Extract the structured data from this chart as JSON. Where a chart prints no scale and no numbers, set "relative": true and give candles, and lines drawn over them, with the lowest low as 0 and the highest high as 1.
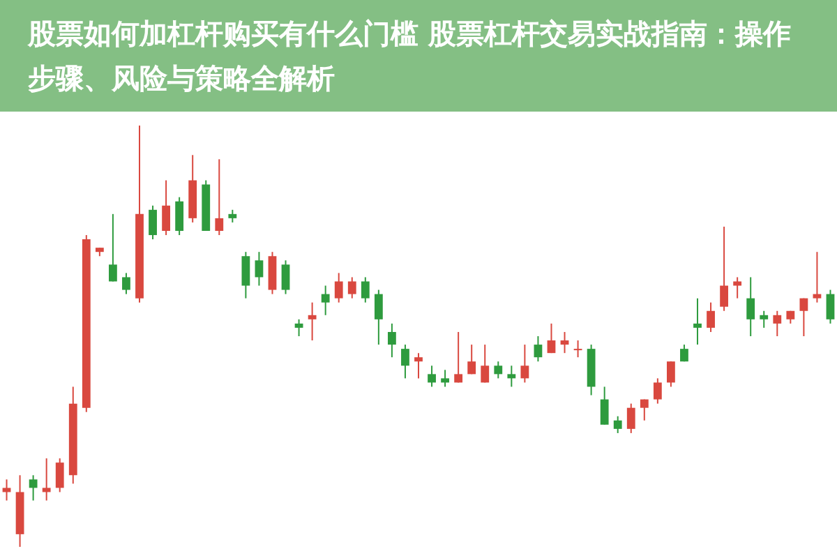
{
  "chart_data": {
    "type": "candlestick",
    "title": "股票如何加杠杆购买有什么门槛 股票杠杆交易实战指南：操作步骤、风险与策略全解析",
    "relative": true,
    "categories": [
      null,
      null,
      null,
      null,
      null,
      null,
      null,
      null,
      null,
      null,
      null,
      null,
      null,
      null,
      null,
      null,
      null,
      null,
      null,
      null,
      null,
      null,
      null,
      null,
      null,
      null,
      null,
      null,
      null,
      null,
      null,
      null,
      null,
      null,
      null,
      null,
      null,
      null,
      null,
      null,
      null,
      null,
      null,
      null,
      null,
      null,
      null,
      null,
      null,
      null,
      null,
      null,
      null,
      null,
      null,
      null,
      null,
      null,
      null,
      null,
      null,
      null,
      null
    ],
    "ohlc": [
      [
        0.13,
        0.16,
        0.11,
        0.14
      ],
      [
        0.03,
        0.17,
        0,
        0.13
      ],
      [
        0.16,
        0.17,
        0.11,
        0.14
      ],
      [
        0.13,
        0.21,
        0.11,
        0.14
      ],
      [
        0.14,
        0.21,
        0.13,
        0.2
      ],
      [
        0.17,
        0.38,
        0.15,
        0.34
      ],
      [
        0.33,
        0.74,
        0.32,
        0.73
      ],
      [
        0.7,
        0.71,
        0.69,
        0.71
      ],
      [
        0.67,
        0.79,
        0.63,
        0.63
      ],
      [
        0.64,
        0.65,
        0.6,
        0.61
      ],
      [
        0.59,
        1,
        0.58,
        0.79
      ],
      [
        0.8,
        0.81,
        0.73,
        0.74
      ],
      [
        0.75,
        0.87,
        0.74,
        0.81
      ],
      [
        0.82,
        0.83,
        0.74,
        0.75
      ],
      [
        0.78,
        0.93,
        0.77,
        0.87
      ],
      [
        0.86,
        0.87,
        0.75,
        0.75
      ],
      [
        0.75,
        0.92,
        0.74,
        0.78
      ],
      [
        0.79,
        0.8,
        0.77,
        0.78
      ],
      [
        0.69,
        0.7,
        0.59,
        0.62
      ],
      [
        0.68,
        0.7,
        0.62,
        0.64
      ],
      [
        0.61,
        0.7,
        0.6,
        0.69
      ],
      [
        0.67,
        0.68,
        0.6,
        0.61
      ],
      [
        0.53,
        0.54,
        0.5,
        0.52
      ],
      [
        0.54,
        0.58,
        0.49,
        0.55
      ],
      [
        0.6,
        0.62,
        0.55,
        0.58
      ],
      [
        0.59,
        0.65,
        0.58,
        0.63
      ],
      [
        0.6,
        0.64,
        0.59,
        0.63
      ],
      [
        0.63,
        0.64,
        0.58,
        0.59
      ],
      [
        0.6,
        0.61,
        0.48,
        0.54
      ],
      [
        0.51,
        0.53,
        0.45,
        0.48
      ],
      [
        0.47,
        0.48,
        0.4,
        0.43
      ],
      [
        0.44,
        0.46,
        0.4,
        0.45
      ],
      [
        0.41,
        0.43,
        0.38,
        0.39
      ],
      [
        0.4,
        0.42,
        0.38,
        0.39
      ],
      [
        0.39,
        0.51,
        0.39,
        0.41
      ],
      [
        0.41,
        0.48,
        0.41,
        0.44
      ],
      [
        0.39,
        0.48,
        0.39,
        0.43
      ],
      [
        0.43,
        0.44,
        0.4,
        0.41
      ],
      [
        0.41,
        0.43,
        0.38,
        0.4
      ],
      [
        0.4,
        0.48,
        0.39,
        0.43
      ],
      [
        0.48,
        0.5,
        0.44,
        0.45
      ],
      [
        0.46,
        0.53,
        0.46,
        0.49
      ],
      [
        0.48,
        0.51,
        0.46,
        0.49
      ],
      [
        0.47,
        0.49,
        0.45,
        0.47
      ],
      [
        0.47,
        0.48,
        0.36,
        0.38
      ],
      [
        0.35,
        0.38,
        0.29,
        0.29
      ],
      [
        0.3,
        0.31,
        0.27,
        0.28
      ],
      [
        0.28,
        0.34,
        0.27,
        0.33
      ],
      [
        0.33,
        0.35,
        0.3,
        0.35
      ],
      [
        0.35,
        0.4,
        0.34,
        0.39
      ],
      [
        0.39,
        0.44,
        0.38,
        0.44
      ],
      [
        0.47,
        0.48,
        0.44,
        0.44
      ],
      [
        0.53,
        0.59,
        0.48,
        0.52
      ],
      [
        0.52,
        0.58,
        0.51,
        0.56
      ],
      [
        0.57,
        0.76,
        0.56,
        0.62
      ],
      [
        0.62,
        0.64,
        0.59,
        0.63
      ],
      [
        0.59,
        0.64,
        0.5,
        0.54
      ],
      [
        0.55,
        0.56,
        0.52,
        0.54
      ],
      [
        0.53,
        0.56,
        0.5,
        0.55
      ],
      [
        0.54,
        0.56,
        0.53,
        0.56
      ],
      [
        0.56,
        0.59,
        0.5,
        0.59
      ],
      [
        0.59,
        0.7,
        0.58,
        0.6
      ],
      [
        0.6,
        0.61,
        0.53,
        0.54
      ]
    ]
  }
}
